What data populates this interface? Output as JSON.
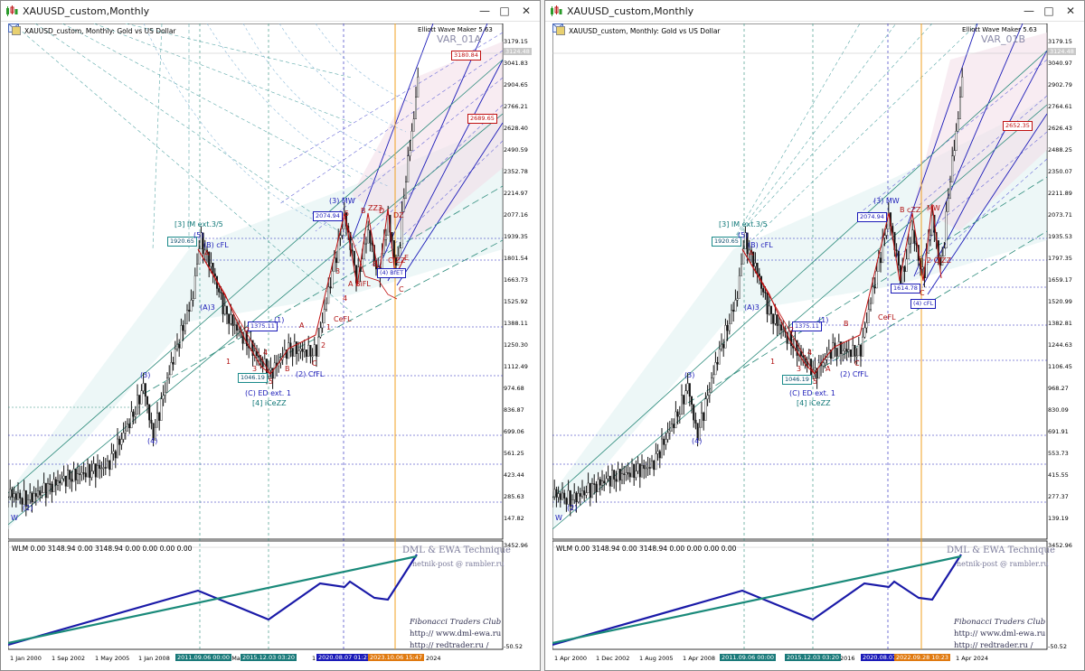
{
  "windows": [
    {
      "title": "XAUUSD_custom,Monthly",
      "symbol_label": "XAUUSD_custom, Monthly:  Gold vs US Dollar",
      "tool_label": "Elliott Wave Maker 5.63",
      "variant_label": "VAR_01A",
      "current_price": "3124.48",
      "price_axis": [
        "3179.15",
        "3041.83",
        "2904.65",
        "2766.21",
        "2628.40",
        "2490.59",
        "2352.78",
        "2214.97",
        "2077.16",
        "1939.35",
        "1801.54",
        "1663.73",
        "1525.92",
        "1388.11",
        "1250.30",
        "1112.49",
        "974.68",
        "836.87",
        "699.06",
        "561.25",
        "423.44",
        "285.63",
        "147.82"
      ],
      "indicator_label": "WLM 0.00 3148.94 0.00 3148.94 0.00 0.00 0.00 0.00",
      "indicator_axis": [
        "3452.96",
        "-50.52"
      ],
      "time_axis": [
        "1 Jan 2000",
        "1 Sep 2002",
        "1 May 2005",
        "1 Jan 2008",
        "1 Ma",
        "1",
        "2024"
      ],
      "time_highlights": [
        "2011.09.06 00:00",
        "2015.12.03 03:20",
        "2020.08.07 01:21",
        "2023.10.06 15:47"
      ],
      "boxes": {
        "b1920": "1920.65",
        "b2074": "2074.94",
        "b1375": "1375.11",
        "b1046": "1046.19",
        "b3180": "3180.84",
        "b2689": "2689.65",
        "b4bfet": "(4) BfET"
      },
      "wave_labels": {
        "im": "[3] IM ext.3/5",
        "w5": "(5)",
        "bcfl": "(B) cFL",
        "a3": "(A)3",
        "w1p": "(1)",
        "ed": "(C) ED ext. 1",
        "iceZZ": "[4] iCeZZ",
        "cfl2": "(2) CfFL",
        "mw": "(3) MW",
        "w3": "(3)",
        "w4": "(4)",
        "w2": "(2)",
        "ceFL": "CeFL",
        "bifl": "A BiFL",
        "zzs": "ZZ3",
        "wletter": "W",
        "n1": "1",
        "n2": "2",
        "n3": "3",
        "n4": "4",
        "n5": "5",
        "la": "A",
        "lb": "B",
        "lc": "C",
        "l1": "1",
        "l2": "2",
        "l3": "3",
        "l4": "4",
        "l5": "5",
        "la2": "A",
        "lb2": "B",
        "lc2": "C",
        "lD": "D",
        "lE": "E",
        "lDZ": "DZ",
        "lbA": "B",
        "lcf": "CfZZ"
      },
      "credits": {
        "title": "DML & EWA Technique",
        "email": "netnik-post @ rambler.ru",
        "club": "Fibonacci  Traders  Club",
        "site1": "http:// www.dml-ewa.ru",
        "site2": "http:// redtrader.ru /"
      }
    },
    {
      "title": "XAUUSD_custom,Monthly",
      "symbol_label": "XAUUSD_custom, Monthly:  Gold vs US Dollar",
      "tool_label": "Elliott Wave Maker 5.63",
      "variant_label": "VAR_01B",
      "current_price": "3124.48",
      "price_axis": [
        "3179.15",
        "3040.97",
        "2902.79",
        "2764.61",
        "2626.43",
        "2488.25",
        "2350.07",
        "2211.89",
        "2073.71",
        "1935.53",
        "1797.35",
        "1659.17",
        "1520.99",
        "1382.81",
        "1244.63",
        "1106.45",
        "968.27",
        "830.09",
        "691.91",
        "553.73",
        "415.55",
        "277.37",
        "139.19"
      ],
      "indicator_label": "WLM 0.00 3148.94 0.00 3148.94 0.00 0.00 0.00 0.00",
      "indicator_axis": [
        "3452.96",
        "-50.52"
      ],
      "time_axis": [
        "1 Apr 2000",
        "1 Dec 2002",
        "1 Aug 2005",
        "1 Apr 2008",
        "2016",
        "1 Apr 2024"
      ],
      "time_highlights": [
        "2011.09.06 00:00",
        "2015.12.03 03:20",
        "2020.08.07",
        "2022.09.28 10:23"
      ],
      "boxes": {
        "b1920": "1920.65",
        "b2074": "2074.94",
        "b1375": "1375.11",
        "b1046": "1046.19",
        "b1614": "1614.78",
        "b2652": "2652.35",
        "b4cfl": "(4) cFL"
      },
      "wave_labels": {
        "im": "[3] IM ext.3/5",
        "w5": "(5)",
        "bcfl": "(B) cFL",
        "a3": "(A)3",
        "w1p": "(1)",
        "ed": "(C) ED ext. 1",
        "iceZZ": "[4] iCeZZ",
        "cfl2": "(2) CfFL",
        "mw": "(3) MW",
        "w3": "(3)",
        "w4": "(4)",
        "w2": "(2)",
        "ceFL": "CeFL",
        "mw2": "MW",
        "czz": "2 CfZZ",
        "bcz": "B cZZ",
        "wletter": "W",
        "la": "A",
        "lb": "B",
        "lc": "C",
        "l1": "1",
        "l2": "2",
        "l3": "3",
        "l4": "4",
        "l5": "5",
        "lC2": "C"
      },
      "credits": {
        "title": "DML & EWA Technique",
        "email": "netnik-post @ rambler.ru",
        "club": "Fibonacci  Traders  Club",
        "site1": "http:// www.dml-ewa.ru",
        "site2": "http:// redtrader.ru /"
      }
    }
  ],
  "colors": {
    "wave_blue": "#1a1ab8",
    "wave_red": "#b01010",
    "wave_teal": "#107878",
    "channel_teal": "#2a8a7a",
    "vline_orange": "#f0a020",
    "hl_teal": "#1a7a7a",
    "hl_blue": "#1a1ab8",
    "hl_orange": "#e07a10"
  }
}
